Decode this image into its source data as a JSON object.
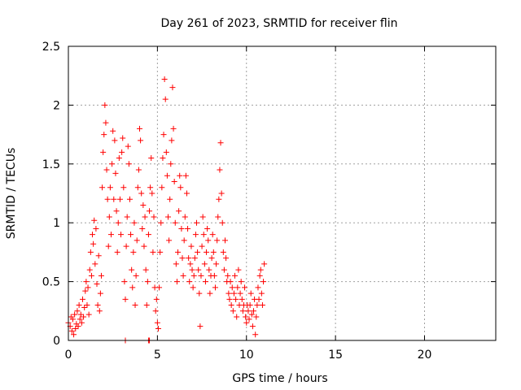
{
  "chart_data": {
    "type": "scatter",
    "title": "Day 261 of 2023, SRMTID for receiver flin",
    "xlabel": "GPS time / hours",
    "ylabel": "SRMTID / TECUs",
    "xlim": [
      0,
      24
    ],
    "ylim": [
      0,
      2.5
    ],
    "xticks": [
      0,
      5,
      10,
      15,
      20
    ],
    "yticks": [
      0,
      0.5,
      1,
      1.5,
      2,
      2.5
    ],
    "xtick_labels": [
      "0",
      "5",
      "10",
      "15",
      "20"
    ],
    "ytick_labels": [
      "0",
      "0.5",
      "1",
      "1.5",
      "2",
      "2.5"
    ],
    "grid": true,
    "marker": "+",
    "color": "#ff0000",
    "series": [
      {
        "name": "SRMTID",
        "points": [
          [
            0.0,
            0.15
          ],
          [
            0.1,
            0.12
          ],
          [
            0.15,
            0.2
          ],
          [
            0.2,
            0.08
          ],
          [
            0.25,
            0.18
          ],
          [
            0.3,
            0.05
          ],
          [
            0.35,
            0.22
          ],
          [
            0.4,
            0.1
          ],
          [
            0.45,
            0.14
          ],
          [
            0.5,
            0.25
          ],
          [
            0.55,
            0.12
          ],
          [
            0.6,
            0.3
          ],
          [
            0.65,
            0.18
          ],
          [
            0.7,
            0.22
          ],
          [
            0.75,
            0.15
          ],
          [
            0.8,
            0.35
          ],
          [
            0.85,
            0.2
          ],
          [
            0.9,
            0.28
          ],
          [
            0.95,
            0.42
          ],
          [
            1.0,
            0.5
          ],
          [
            1.05,
            0.3
          ],
          [
            1.1,
            0.45
          ],
          [
            1.15,
            0.22
          ],
          [
            1.2,
            0.6
          ],
          [
            1.25,
            0.75
          ],
          [
            1.3,
            0.55
          ],
          [
            1.35,
            0.9
          ],
          [
            1.4,
            0.82
          ],
          [
            1.45,
            1.02
          ],
          [
            1.5,
            0.65
          ],
          [
            1.55,
            0.95
          ],
          [
            1.6,
            0.48
          ],
          [
            1.65,
            0.3
          ],
          [
            1.7,
            0.72
          ],
          [
            1.75,
            0.25
          ],
          [
            1.8,
            0.4
          ],
          [
            1.85,
            0.55
          ],
          [
            1.9,
            1.3
          ],
          [
            1.95,
            1.6
          ],
          [
            2.0,
            1.75
          ],
          [
            2.05,
            2.0
          ],
          [
            2.1,
            1.85
          ],
          [
            2.15,
            1.45
          ],
          [
            2.2,
            1.2
          ],
          [
            2.25,
            0.8
          ],
          [
            2.3,
            1.05
          ],
          [
            2.35,
            1.3
          ],
          [
            2.4,
            0.9
          ],
          [
            2.45,
            1.5
          ],
          [
            2.5,
            1.78
          ],
          [
            2.55,
            1.2
          ],
          [
            2.6,
            1.7
          ],
          [
            2.65,
            1.42
          ],
          [
            2.7,
            1.1
          ],
          [
            2.75,
            0.75
          ],
          [
            2.8,
            1.0
          ],
          [
            2.85,
            1.55
          ],
          [
            2.9,
            1.2
          ],
          [
            2.95,
            0.9
          ],
          [
            3.0,
            1.6
          ],
          [
            3.05,
            1.72
          ],
          [
            3.1,
            1.3
          ],
          [
            3.15,
            0.5
          ],
          [
            3.2,
            0.35
          ],
          [
            3.25,
            0.8
          ],
          [
            3.3,
            1.05
          ],
          [
            3.35,
            1.65
          ],
          [
            3.4,
            1.5
          ],
          [
            3.45,
            1.2
          ],
          [
            3.5,
            0.9
          ],
          [
            3.55,
            0.6
          ],
          [
            3.6,
            0.45
          ],
          [
            3.65,
            0.75
          ],
          [
            3.7,
            1.0
          ],
          [
            3.75,
            0.3
          ],
          [
            3.8,
            0.55
          ],
          [
            3.85,
            0.85
          ],
          [
            3.9,
            1.3
          ],
          [
            3.95,
            1.45
          ],
          [
            4.0,
            1.8
          ],
          [
            4.05,
            1.7
          ],
          [
            4.1,
            1.25
          ],
          [
            4.15,
            0.95
          ],
          [
            4.2,
            1.15
          ],
          [
            4.25,
            0.8
          ],
          [
            4.3,
            1.05
          ],
          [
            4.35,
            0.6
          ],
          [
            4.4,
            0.3
          ],
          [
            4.45,
            0.5
          ],
          [
            4.5,
            0.9
          ],
          [
            4.55,
            1.1
          ],
          [
            4.6,
            1.3
          ],
          [
            4.65,
            1.55
          ],
          [
            4.7,
            1.25
          ],
          [
            4.75,
            0.75
          ],
          [
            4.8,
            1.05
          ],
          [
            4.85,
            0.45
          ],
          [
            4.9,
            0.25
          ],
          [
            4.95,
            0.35
          ],
          [
            5.0,
            0.15
          ],
          [
            5.05,
            0.1
          ],
          [
            5.1,
            0.45
          ],
          [
            5.15,
            0.75
          ],
          [
            5.2,
            1.0
          ],
          [
            5.25,
            1.3
          ],
          [
            5.3,
            1.55
          ],
          [
            5.35,
            1.75
          ],
          [
            5.4,
            2.22
          ],
          [
            5.45,
            2.05
          ],
          [
            5.5,
            1.6
          ],
          [
            5.55,
            1.4
          ],
          [
            5.6,
            1.05
          ],
          [
            5.65,
            0.85
          ],
          [
            5.7,
            1.2
          ],
          [
            5.75,
            1.5
          ],
          [
            5.8,
            1.7
          ],
          [
            5.85,
            2.15
          ],
          [
            5.9,
            1.8
          ],
          [
            5.95,
            1.35
          ],
          [
            6.0,
            1.0
          ],
          [
            6.05,
            0.65
          ],
          [
            6.1,
            0.5
          ],
          [
            6.15,
            0.75
          ],
          [
            6.2,
            1.1
          ],
          [
            6.25,
            1.4
          ],
          [
            6.3,
            1.3
          ],
          [
            6.35,
            0.95
          ],
          [
            6.4,
            0.7
          ],
          [
            6.45,
            0.55
          ],
          [
            6.5,
            0.85
          ],
          [
            6.55,
            1.05
          ],
          [
            6.6,
            1.4
          ],
          [
            6.65,
            1.25
          ],
          [
            6.7,
            0.95
          ],
          [
            6.75,
            0.7
          ],
          [
            6.8,
            0.5
          ],
          [
            6.85,
            0.65
          ],
          [
            6.9,
            0.8
          ],
          [
            6.95,
            0.6
          ],
          [
            7.0,
            0.45
          ],
          [
            7.05,
            0.55
          ],
          [
            7.1,
            0.7
          ],
          [
            7.15,
            0.9
          ],
          [
            7.2,
            1.0
          ],
          [
            7.25,
            0.75
          ],
          [
            7.3,
            0.6
          ],
          [
            7.35,
            0.4
          ],
          [
            7.4,
            0.12
          ],
          [
            7.45,
            0.55
          ],
          [
            7.5,
            0.8
          ],
          [
            7.55,
            1.05
          ],
          [
            7.6,
            0.9
          ],
          [
            7.65,
            0.65
          ],
          [
            7.7,
            0.5
          ],
          [
            7.75,
            0.75
          ],
          [
            7.8,
            0.95
          ],
          [
            7.85,
            0.85
          ],
          [
            7.9,
            0.6
          ],
          [
            7.95,
            0.4
          ],
          [
            8.0,
            0.55
          ],
          [
            8.05,
            0.7
          ],
          [
            8.1,
            0.9
          ],
          [
            8.15,
            0.75
          ],
          [
            8.2,
            0.55
          ],
          [
            8.25,
            0.45
          ],
          [
            8.3,
            0.65
          ],
          [
            8.35,
            0.85
          ],
          [
            8.4,
            1.05
          ],
          [
            8.45,
            1.2
          ],
          [
            8.5,
            1.45
          ],
          [
            8.55,
            1.68
          ],
          [
            8.6,
            1.25
          ],
          [
            8.65,
            1.0
          ],
          [
            8.7,
            0.75
          ],
          [
            8.75,
            0.6
          ],
          [
            8.8,
            0.85
          ],
          [
            8.85,
            0.7
          ],
          [
            8.9,
            0.5
          ],
          [
            8.95,
            0.55
          ],
          [
            9.0,
            0.4
          ],
          [
            9.05,
            0.35
          ],
          [
            9.1,
            0.5
          ],
          [
            9.15,
            0.3
          ],
          [
            9.2,
            0.45
          ],
          [
            9.25,
            0.25
          ],
          [
            9.3,
            0.4
          ],
          [
            9.35,
            0.55
          ],
          [
            9.4,
            0.35
          ],
          [
            9.45,
            0.2
          ],
          [
            9.5,
            0.45
          ],
          [
            9.55,
            0.6
          ],
          [
            9.6,
            0.3
          ],
          [
            9.65,
            0.4
          ],
          [
            9.7,
            0.5
          ],
          [
            9.75,
            0.35
          ],
          [
            9.8,
            0.25
          ],
          [
            9.85,
            0.3
          ],
          [
            9.9,
            0.45
          ],
          [
            9.95,
            0.2
          ],
          [
            10.0,
            0.15
          ],
          [
            10.05,
            0.3
          ],
          [
            10.1,
            0.25
          ],
          [
            10.15,
            0.18
          ],
          [
            10.2,
            0.3
          ],
          [
            10.25,
            0.4
          ],
          [
            10.3,
            0.22
          ],
          [
            10.35,
            0.12
          ],
          [
            10.4,
            0.25
          ],
          [
            10.45,
            0.35
          ],
          [
            10.5,
            0.05
          ],
          [
            10.55,
            0.2
          ],
          [
            10.6,
            0.3
          ],
          [
            10.65,
            0.45
          ],
          [
            10.7,
            0.35
          ],
          [
            10.75,
            0.55
          ],
          [
            10.8,
            0.6
          ],
          [
            10.85,
            0.4
          ],
          [
            10.9,
            0.3
          ],
          [
            10.95,
            0.5
          ],
          [
            11.0,
            0.65
          ],
          [
            3.2,
            0.0
          ],
          [
            4.5,
            0.0
          ],
          [
            4.55,
            0.0
          ]
        ]
      }
    ]
  }
}
